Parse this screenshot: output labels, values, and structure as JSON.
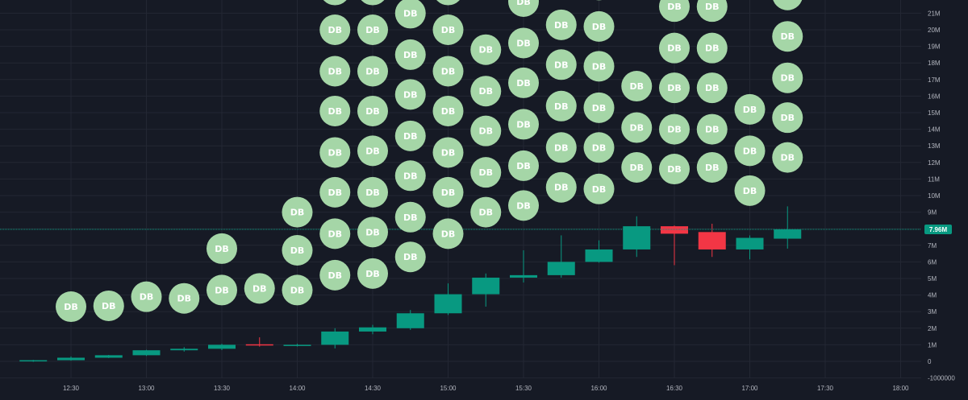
{
  "chart_data": {
    "type": "candlestick",
    "colors": {
      "background": "#161a25",
      "grid": "#232733",
      "up": "#089981",
      "down": "#f23645",
      "marker_fill": "#a5d6a7",
      "marker_text": "#ffffff",
      "axis_text": "#b2b5be",
      "last_price_line": "#089981"
    },
    "y_axis": {
      "min": -1000000,
      "max": 22000000,
      "tick_labels": [
        {
          "value": -1000000,
          "label": "-1000000"
        },
        {
          "value": 0,
          "label": "0"
        },
        {
          "value": 1000000,
          "label": "1M"
        },
        {
          "value": 2000000,
          "label": "2M"
        },
        {
          "value": 3000000,
          "label": "3M"
        },
        {
          "value": 4000000,
          "label": "4M"
        },
        {
          "value": 5000000,
          "label": "5M"
        },
        {
          "value": 6000000,
          "label": "6M"
        },
        {
          "value": 7000000,
          "label": "7M"
        },
        {
          "value": 8000000,
          "label": "8M"
        },
        {
          "value": 9000000,
          "label": "9M"
        },
        {
          "value": 10000000,
          "label": "10M"
        },
        {
          "value": 11000000,
          "label": "11M"
        },
        {
          "value": 12000000,
          "label": "12M"
        },
        {
          "value": 13000000,
          "label": "13M"
        },
        {
          "value": 14000000,
          "label": "14M"
        },
        {
          "value": 15000000,
          "label": "15M"
        },
        {
          "value": 16000000,
          "label": "16M"
        },
        {
          "value": 17000000,
          "label": "17M"
        },
        {
          "value": 18000000,
          "label": "18M"
        },
        {
          "value": 19000000,
          "label": "19M"
        },
        {
          "value": 20000000,
          "label": "20M"
        },
        {
          "value": 21000000,
          "label": "21M"
        }
      ]
    },
    "x_axis": {
      "interval_minutes": 15,
      "time_labels": [
        {
          "time": "12:30",
          "label": "12:30"
        },
        {
          "time": "13:00",
          "label": "13:00"
        },
        {
          "time": "13:30",
          "label": "13:30"
        },
        {
          "time": "14:00",
          "label": "14:00"
        },
        {
          "time": "14:30",
          "label": "14:30"
        },
        {
          "time": "15:00",
          "label": "15:00"
        },
        {
          "time": "15:30",
          "label": "15:30"
        },
        {
          "time": "16:00",
          "label": "16:00"
        },
        {
          "time": "16:30",
          "label": "16:30"
        },
        {
          "time": "17:00",
          "label": "17:00"
        },
        {
          "time": "17:30",
          "label": "17:30"
        },
        {
          "time": "18:00",
          "label": "18:00"
        }
      ],
      "range": [
        "12:07",
        "18:04"
      ]
    },
    "candles": [
      {
        "t": "12:15",
        "o": 0,
        "h": 90000,
        "l": -30000,
        "c": 70000
      },
      {
        "t": "12:30",
        "o": 70000,
        "h": 300000,
        "l": 40000,
        "c": 220000
      },
      {
        "t": "12:45",
        "o": 220000,
        "h": 390000,
        "l": 200000,
        "c": 370000
      },
      {
        "t": "13:00",
        "o": 370000,
        "h": 700000,
        "l": 330000,
        "c": 670000
      },
      {
        "t": "13:15",
        "o": 670000,
        "h": 860000,
        "l": 590000,
        "c": 760000
      },
      {
        "t": "13:30",
        "o": 760000,
        "h": 1060000,
        "l": 680000,
        "c": 1000000
      },
      {
        "t": "13:45",
        "o": 1030000,
        "h": 1450000,
        "l": 890000,
        "c": 960000
      },
      {
        "t": "14:00",
        "o": 960000,
        "h": 1060000,
        "l": 900000,
        "c": 1000000
      },
      {
        "t": "14:15",
        "o": 1000000,
        "h": 2000000,
        "l": 780000,
        "c": 1800000
      },
      {
        "t": "14:30",
        "o": 1800000,
        "h": 2200000,
        "l": 1640000,
        "c": 2050000
      },
      {
        "t": "14:45",
        "o": 2000000,
        "h": 3100000,
        "l": 1900000,
        "c": 2900000
      },
      {
        "t": "15:00",
        "o": 2900000,
        "h": 4700000,
        "l": 2800000,
        "c": 4050000
      },
      {
        "t": "15:15",
        "o": 4050000,
        "h": 5300000,
        "l": 3300000,
        "c": 5050000
      },
      {
        "t": "15:30",
        "o": 5050000,
        "h": 6700000,
        "l": 4760000,
        "c": 5200000
      },
      {
        "t": "15:45",
        "o": 5200000,
        "h": 7600000,
        "l": 5050000,
        "c": 6000000
      },
      {
        "t": "16:00",
        "o": 6000000,
        "h": 7300000,
        "l": 5950000,
        "c": 6750000
      },
      {
        "t": "16:15",
        "o": 6750000,
        "h": 8750000,
        "l": 6300000,
        "c": 8150000
      },
      {
        "t": "16:30",
        "o": 8150000,
        "h": 8200000,
        "l": 5800000,
        "c": 7700000
      },
      {
        "t": "16:45",
        "o": 7800000,
        "h": 8300000,
        "l": 6300000,
        "c": 6750000
      },
      {
        "t": "17:00",
        "o": 6750000,
        "h": 7600000,
        "l": 6150000,
        "c": 7450000
      },
      {
        "t": "17:15",
        "o": 7400000,
        "h": 9350000,
        "l": 6800000,
        "c": 7960000
      }
    ],
    "last_price": {
      "value": 7960000,
      "label": "7.96M"
    },
    "marker_label": "DB",
    "markers": [
      {
        "t": "12:30",
        "y": [
          3300000
        ]
      },
      {
        "t": "12:45",
        "y": [
          3350000
        ]
      },
      {
        "t": "13:00",
        "y": [
          3900000
        ]
      },
      {
        "t": "13:15",
        "y": [
          3800000
        ]
      },
      {
        "t": "13:30",
        "y": [
          4300000,
          6800000
        ]
      },
      {
        "t": "13:45",
        "y": [
          4400000
        ]
      },
      {
        "t": "14:00",
        "y": [
          4300000,
          6700000,
          9000000
        ]
      },
      {
        "t": "14:15",
        "y": [
          5200000,
          7700000,
          10200000,
          12600000,
          15100000,
          17500000,
          20000000,
          22400000
        ]
      },
      {
        "t": "14:30",
        "y": [
          5300000,
          7800000,
          10200000,
          12700000,
          15100000,
          17500000,
          20000000,
          22400000
        ]
      },
      {
        "t": "14:45",
        "y": [
          6300000,
          8700000,
          11200000,
          13600000,
          16100000,
          18500000,
          21000000
        ]
      },
      {
        "t": "15:00",
        "y": [
          7700000,
          10200000,
          12600000,
          15100000,
          17500000,
          20000000,
          22400000
        ]
      },
      {
        "t": "15:15",
        "y": [
          9000000,
          11400000,
          13900000,
          16300000,
          18800000
        ]
      },
      {
        "t": "15:30",
        "y": [
          9400000,
          11800000,
          14300000,
          16800000,
          19200000,
          21700000
        ]
      },
      {
        "t": "15:45",
        "y": [
          10500000,
          12900000,
          15400000,
          17900000,
          20300000
        ]
      },
      {
        "t": "16:00",
        "y": [
          10400000,
          12900000,
          15300000,
          17800000,
          20200000,
          22700000
        ]
      },
      {
        "t": "16:15",
        "y": [
          11700000,
          14100000,
          16600000
        ]
      },
      {
        "t": "16:30",
        "y": [
          11600000,
          14000000,
          16500000,
          18900000,
          21400000
        ]
      },
      {
        "t": "16:45",
        "y": [
          11700000,
          14000000,
          16500000,
          18900000,
          21400000
        ]
      },
      {
        "t": "17:00",
        "y": [
          10300000,
          12700000,
          15200000
        ]
      },
      {
        "t": "17:15",
        "y": [
          12300000,
          14700000,
          17100000,
          19600000,
          22100000
        ]
      }
    ]
  }
}
